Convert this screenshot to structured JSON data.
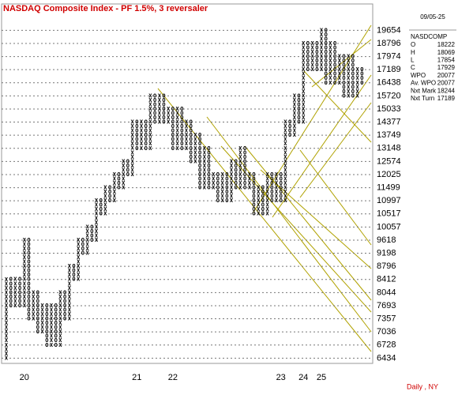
{
  "chart_data": {
    "type": "point-figure",
    "title": "NASDAQ Composite Index  -  PF 1.5%, 3 reversaler",
    "footer": "Daily , NY",
    "box_pct": 1.5,
    "log_scale": true,
    "ylim": [
      6320,
      21500
    ],
    "yticks": [
      6434,
      6728,
      7036,
      7357,
      7693,
      8044,
      8412,
      8796,
      9198,
      9618,
      10057,
      10517,
      10997,
      11499,
      12025,
      12574,
      13148,
      13749,
      14377,
      15033,
      15720,
      16438,
      17189,
      17974,
      18796,
      19654
    ],
    "grid": true,
    "columns": [
      {
        "type": "X",
        "low": 6434,
        "high": 8412
      },
      {
        "type": "O",
        "low": 7693,
        "high": 8412
      },
      {
        "type": "X",
        "low": 7693,
        "high": 8412
      },
      {
        "type": "O",
        "low": 7693,
        "high": 8412
      },
      {
        "type": "X",
        "low": 7693,
        "high": 9618,
        "year": "20"
      },
      {
        "type": "O",
        "low": 7357,
        "high": 9618
      },
      {
        "type": "X",
        "low": 7357,
        "high": 8044
      },
      {
        "type": "O",
        "low": 7036,
        "high": 8044
      },
      {
        "type": "X",
        "low": 7036,
        "high": 7693
      },
      {
        "type": "O",
        "low": 6728,
        "high": 7693
      },
      {
        "type": "X",
        "low": 6728,
        "high": 7693
      },
      {
        "type": "O",
        "low": 6728,
        "high": 7693
      },
      {
        "type": "X",
        "low": 6728,
        "high": 8044
      },
      {
        "type": "O",
        "low": 7357,
        "high": 8044
      },
      {
        "type": "X",
        "low": 7357,
        "high": 8796
      },
      {
        "type": "O",
        "low": 8412,
        "high": 8796
      },
      {
        "type": "X",
        "low": 8412,
        "high": 9618
      },
      {
        "type": "O",
        "low": 9198,
        "high": 9618
      },
      {
        "type": "X",
        "low": 9198,
        "high": 10057
      },
      {
        "type": "O",
        "low": 9618,
        "high": 10057
      },
      {
        "type": "X",
        "low": 9618,
        "high": 10997
      },
      {
        "type": "O",
        "low": 10517,
        "high": 10997
      },
      {
        "type": "X",
        "low": 10517,
        "high": 11499
      },
      {
        "type": "O",
        "low": 10997,
        "high": 11499
      },
      {
        "type": "X",
        "low": 10997,
        "high": 12025
      },
      {
        "type": "O",
        "low": 11499,
        "high": 12025
      },
      {
        "type": "X",
        "low": 11499,
        "high": 12574
      },
      {
        "type": "O",
        "low": 12025,
        "high": 12574
      },
      {
        "type": "X",
        "low": 12025,
        "high": 14377
      },
      {
        "type": "O",
        "low": 13148,
        "high": 14377,
        "year": "21"
      },
      {
        "type": "X",
        "low": 13148,
        "high": 14377
      },
      {
        "type": "O",
        "low": 13148,
        "high": 14377
      },
      {
        "type": "X",
        "low": 13148,
        "high": 15720
      },
      {
        "type": "O",
        "low": 14377,
        "high": 15720
      },
      {
        "type": "X",
        "low": 14377,
        "high": 15720
      },
      {
        "type": "O",
        "low": 14377,
        "high": 15720
      },
      {
        "type": "X",
        "low": 14377,
        "high": 15033
      },
      {
        "type": "O",
        "low": 13148,
        "high": 15033,
        "year": "22"
      },
      {
        "type": "X",
        "low": 13148,
        "high": 15033
      },
      {
        "type": "O",
        "low": 13148,
        "high": 15033
      },
      {
        "type": "X",
        "low": 13148,
        "high": 14377
      },
      {
        "type": "O",
        "low": 12574,
        "high": 14377
      },
      {
        "type": "X",
        "low": 12574,
        "high": 13749
      },
      {
        "type": "O",
        "low": 11499,
        "high": 13749
      },
      {
        "type": "X",
        "low": 11499,
        "high": 13148
      },
      {
        "type": "O",
        "low": 11499,
        "high": 13148
      },
      {
        "type": "X",
        "low": 11499,
        "high": 12025
      },
      {
        "type": "O",
        "low": 10997,
        "high": 12025
      },
      {
        "type": "X",
        "low": 10997,
        "high": 12025
      },
      {
        "type": "O",
        "low": 10997,
        "high": 12025
      },
      {
        "type": "X",
        "low": 10997,
        "high": 12574
      },
      {
        "type": "O",
        "low": 11499,
        "high": 12574
      },
      {
        "type": "X",
        "low": 11499,
        "high": 13148
      },
      {
        "type": "O",
        "low": 11499,
        "high": 13148
      },
      {
        "type": "X",
        "low": 11499,
        "high": 12025
      },
      {
        "type": "O",
        "low": 10517,
        "high": 12025
      },
      {
        "type": "X",
        "low": 10517,
        "high": 11499
      },
      {
        "type": "O",
        "low": 10517,
        "high": 11499
      },
      {
        "type": "X",
        "low": 10517,
        "high": 12025
      },
      {
        "type": "O",
        "low": 10997,
        "high": 12025
      },
      {
        "type": "X",
        "low": 10997,
        "high": 12025
      },
      {
        "type": "O",
        "low": 10997,
        "high": 12025,
        "year": "23"
      },
      {
        "type": "X",
        "low": 10997,
        "high": 14377
      },
      {
        "type": "O",
        "low": 13749,
        "high": 14377
      },
      {
        "type": "X",
        "low": 13749,
        "high": 15720
      },
      {
        "type": "O",
        "low": 14377,
        "high": 15720
      },
      {
        "type": "X",
        "low": 14377,
        "high": 18796,
        "year": "24"
      },
      {
        "type": "O",
        "low": 17189,
        "high": 18796
      },
      {
        "type": "X",
        "low": 17189,
        "high": 18796
      },
      {
        "type": "O",
        "low": 17189,
        "high": 18796
      },
      {
        "type": "X",
        "low": 17189,
        "high": 19654,
        "year": "25"
      },
      {
        "type": "O",
        "low": 16438,
        "high": 19654
      },
      {
        "type": "X",
        "low": 16438,
        "high": 18796
      },
      {
        "type": "O",
        "low": 16438,
        "high": 18796
      },
      {
        "type": "X",
        "low": 16438,
        "high": 17974
      },
      {
        "type": "O",
        "low": 15720,
        "high": 17974
      },
      {
        "type": "X",
        "low": 15720,
        "high": 17974
      },
      {
        "type": "O",
        "low": 15720,
        "high": 17974
      },
      {
        "type": "X",
        "low": 15720,
        "high": 17189
      },
      {
        "type": "O",
        "low": 16438,
        "high": 17189
      }
    ],
    "info": {
      "date": "09/05-25",
      "symbol": "NASDCOMP",
      "rows": [
        {
          "label": "O",
          "value": 18222
        },
        {
          "label": "H",
          "value": 18069
        },
        {
          "label": "L",
          "value": 17854
        },
        {
          "label": "C",
          "value": 17929
        },
        {
          "label": "WPO",
          "value": 20077
        },
        {
          "label": "Av. WPO",
          "value": 20077
        },
        {
          "label": "Nxt Mark",
          "value": 18244
        },
        {
          "label": "Nxt Turn",
          "value": 17189
        }
      ]
    }
  }
}
